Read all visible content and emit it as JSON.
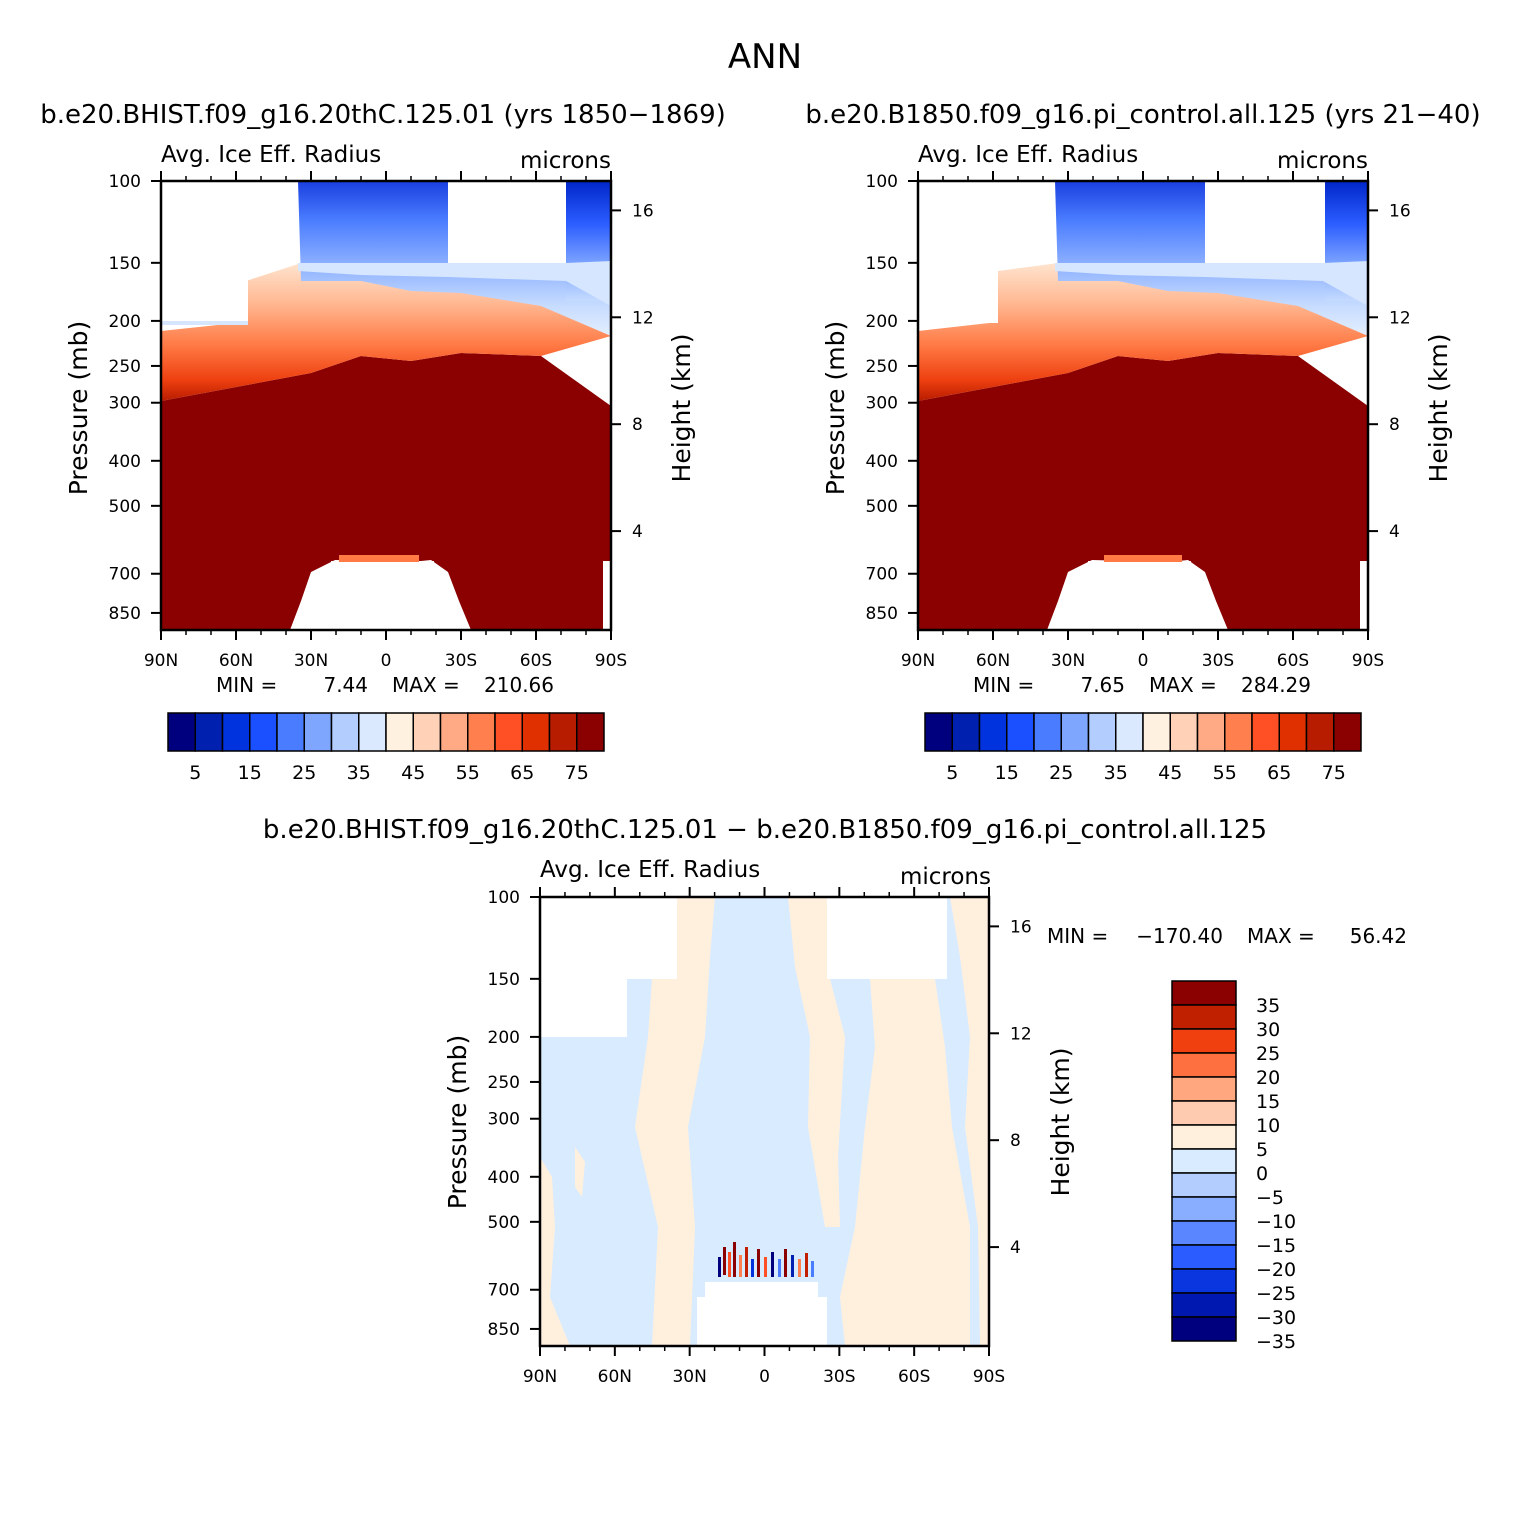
{
  "figure": {
    "title": "ANN",
    "left_header": "b.e20.BHIST.f09_g16.20thC.125.01 (yrs 1850-1869)",
    "right_header": "b.e20.B1850.f09_g16.pi_control.all.125 (yrs 21-40)",
    "diff_header": "b.e20.BHIST.f09_g16.20thC.125.01 - b.e20.B1850.f09_g16.pi_control.all.125"
  },
  "chart_data": [
    {
      "id": "case",
      "type": "heatmap",
      "variable_label": "Avg. Ice Eff. Radius",
      "units_label": "microns",
      "ylabel": "Pressure (mb)",
      "ylabel_right": "Height (km)",
      "x_ticks": [
        "90N",
        "60N",
        "30N",
        "0",
        "30S",
        "60S",
        "90S"
      ],
      "y_ticks": [
        100,
        150,
        200,
        250,
        300,
        400,
        500,
        700,
        850
      ],
      "y_right_ticks": [
        16,
        12,
        8,
        4
      ],
      "min_label": "MIN =",
      "min_value": "7.44",
      "max_label": "MAX =",
      "max_value": "210.66",
      "colorbar_labels": [
        "5",
        "15",
        "25",
        "35",
        "45",
        "55",
        "65",
        "75"
      ],
      "colorbar_colors": [
        "#00007f",
        "#0020b0",
        "#0033dd",
        "#1a50ff",
        "#4a7cff",
        "#7fa6ff",
        "#b3cdff",
        "#dbe9ff",
        "#fff1df",
        "#ffd2b8",
        "#ffaa85",
        "#ff7f4f",
        "#ff5025",
        "#e03000",
        "#b81c00",
        "#8b0000"
      ]
    },
    {
      "id": "control",
      "type": "heatmap",
      "variable_label": "Avg. Ice Eff. Radius",
      "units_label": "microns",
      "ylabel": "Pressure (mb)",
      "ylabel_right": "Height (km)",
      "x_ticks": [
        "90N",
        "60N",
        "30N",
        "0",
        "30S",
        "60S",
        "90S"
      ],
      "y_ticks": [
        100,
        150,
        200,
        250,
        300,
        400,
        500,
        700,
        850
      ],
      "y_right_ticks": [
        16,
        12,
        8,
        4
      ],
      "min_label": "MIN =",
      "min_value": "7.65",
      "max_label": "MAX =",
      "max_value": "284.29",
      "colorbar_labels": [
        "5",
        "15",
        "25",
        "35",
        "45",
        "55",
        "65",
        "75"
      ],
      "colorbar_colors": [
        "#00007f",
        "#0020b0",
        "#0033dd",
        "#1a50ff",
        "#4a7cff",
        "#7fa6ff",
        "#b3cdff",
        "#dbe9ff",
        "#fff1df",
        "#ffd2b8",
        "#ffaa85",
        "#ff7f4f",
        "#ff5025",
        "#e03000",
        "#b81c00",
        "#8b0000"
      ]
    },
    {
      "id": "difference",
      "type": "heatmap",
      "variable_label": "Avg. Ice Eff. Radius",
      "units_label": "microns",
      "ylabel": "Pressure (mb)",
      "ylabel_right": "Height (km)",
      "x_ticks": [
        "90N",
        "60N",
        "30N",
        "0",
        "30S",
        "60S",
        "90S"
      ],
      "y_ticks": [
        100,
        150,
        200,
        250,
        300,
        400,
        500,
        700,
        850
      ],
      "y_right_ticks": [
        16,
        12,
        8,
        4
      ],
      "min_label": "MIN =",
      "min_value": "-170.40",
      "max_label": "MAX =",
      "max_value": "56.42",
      "colorbar_labels": [
        "35",
        "30",
        "25",
        "20",
        "15",
        "10",
        "5",
        "0",
        "-5",
        "-10",
        "-15",
        "-20",
        "-25",
        "-30",
        "-35"
      ],
      "colorbar_colors": [
        "#8b0000",
        "#c02000",
        "#f04010",
        "#ff7040",
        "#ffa880",
        "#ffcbb0",
        "#fff0de",
        "#d9ebff",
        "#b3cdff",
        "#8aaeff",
        "#5a86ff",
        "#2a5cff",
        "#0a36e0",
        "#0018b0",
        "#00007f"
      ]
    }
  ]
}
